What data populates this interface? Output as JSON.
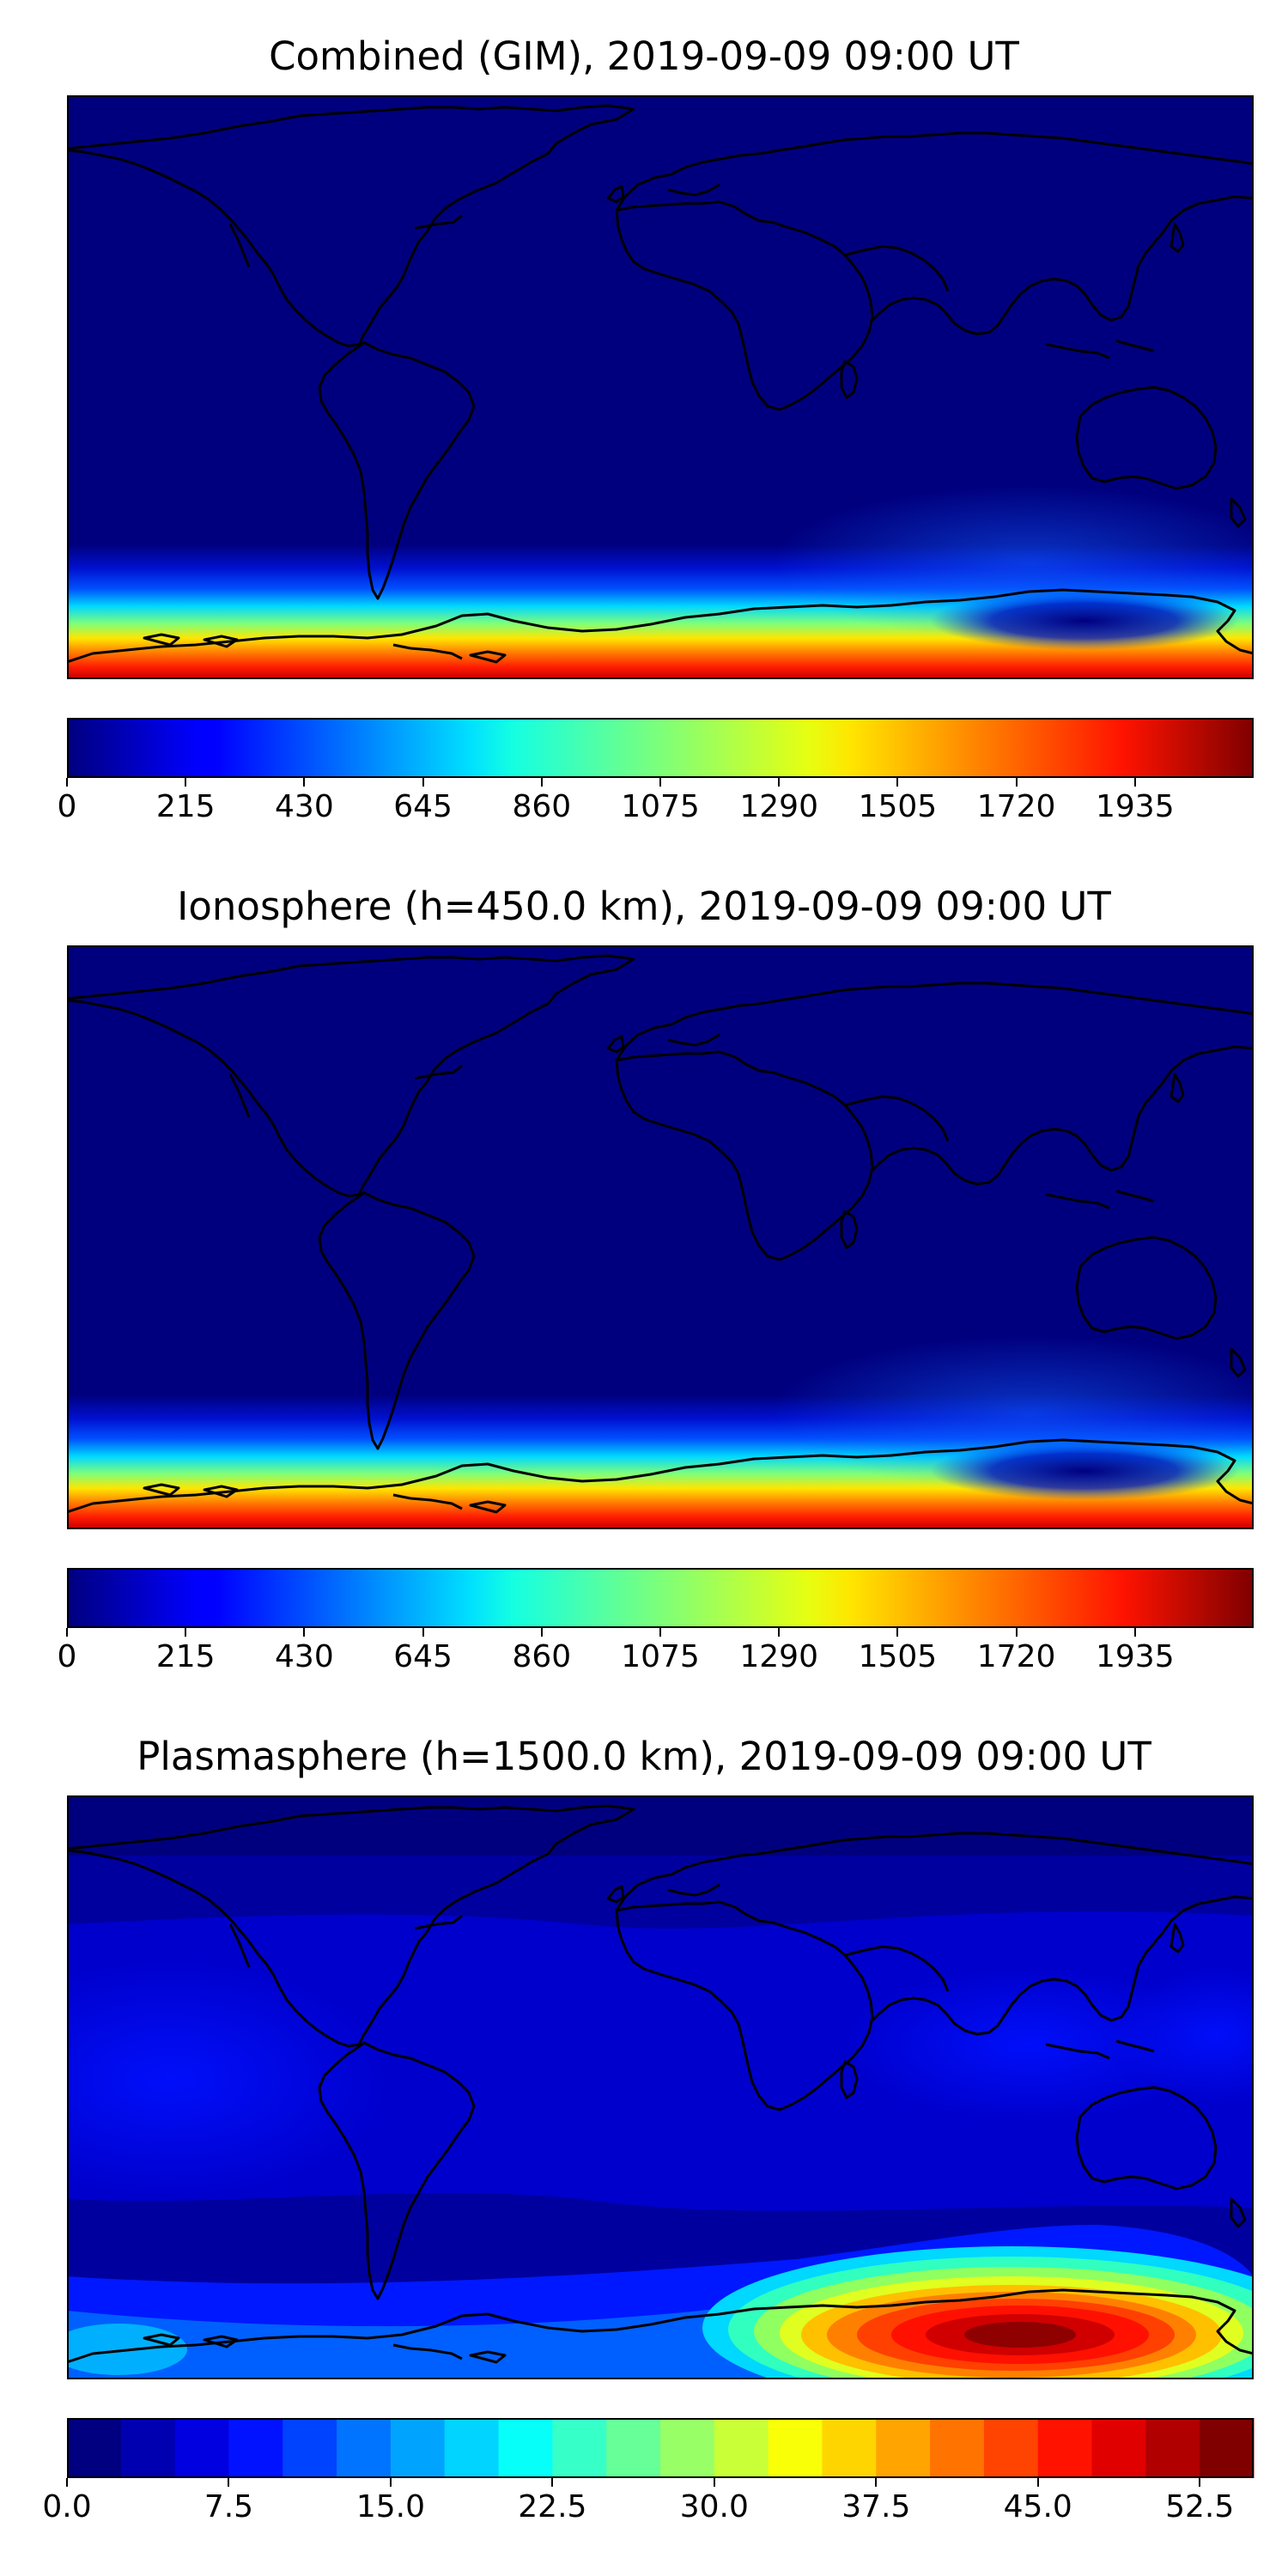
{
  "panels": [
    {
      "title": "Combined (GIM), 2019-09-09 09:00 UT",
      "scale": "continuous",
      "colorbar": {
        "min": 0,
        "max": 2150,
        "ticks": [
          0,
          215,
          430,
          645,
          860,
          1075,
          1290,
          1505,
          1720,
          1935
        ]
      }
    },
    {
      "title": "Ionosphere  (h=450.0 km), 2019-09-09 09:00 UT",
      "scale": "continuous",
      "colorbar": {
        "min": 0,
        "max": 2150,
        "ticks": [
          0,
          215,
          430,
          645,
          860,
          1075,
          1290,
          1505,
          1720,
          1935
        ]
      }
    },
    {
      "title": "Plasmasphere (h=1500.0 km), 2019-09-09 09:00 UT",
      "scale": "discrete",
      "colorbar": {
        "min": 0,
        "max": 55,
        "levels": 22,
        "ticks": [
          "0.0",
          "7.5",
          "15.0",
          "22.5",
          "30.0",
          "37.5",
          "45.0",
          "52.5"
        ]
      }
    }
  ],
  "chart_data": [
    {
      "type": "heatmap",
      "title": "Combined (GIM), 2019-09-09 09:00 UT",
      "map": "world equirectangular with coastlines",
      "colormap": "jet",
      "value_range": [
        0,
        2150
      ],
      "colorbar_ticks": [
        0,
        215,
        430,
        645,
        860,
        1075,
        1290,
        1505,
        1720,
        1935
      ],
      "features": "Near-zero values over most of the globe; values rise steeply toward the southern polar edge, reaching ~2000 near Antarctica; a depleted (dark blue) pocket south of Australia."
    },
    {
      "type": "heatmap",
      "title": "Ionosphere  (h=450.0 km), 2019-09-09 09:00 UT",
      "map": "world equirectangular with coastlines",
      "colormap": "jet",
      "value_range": [
        0,
        2150
      ],
      "colorbar_ticks": [
        0,
        215,
        430,
        645,
        860,
        1075,
        1290,
        1505,
        1720,
        1935
      ],
      "features": "Same pattern as the combined map: low values globally, strong band of high values along Antarctica."
    },
    {
      "type": "heatmap",
      "title": "Plasmasphere (h=1500.0 km), 2019-09-09 09:00 UT",
      "map": "world equirectangular with coastlines",
      "colormap": "jet (22 discrete levels)",
      "value_range": [
        0,
        55
      ],
      "colorbar_ticks": [
        0.0,
        7.5,
        15.0,
        22.5,
        30.0,
        37.5,
        45.0,
        52.5
      ],
      "features": "Values ~2.5-7.5 over most regions with slightly elevated tropical bands over the Pacific and Indian oceans; a peak of ~52.5-55 south of Australia near the Antarctic coast."
    }
  ]
}
